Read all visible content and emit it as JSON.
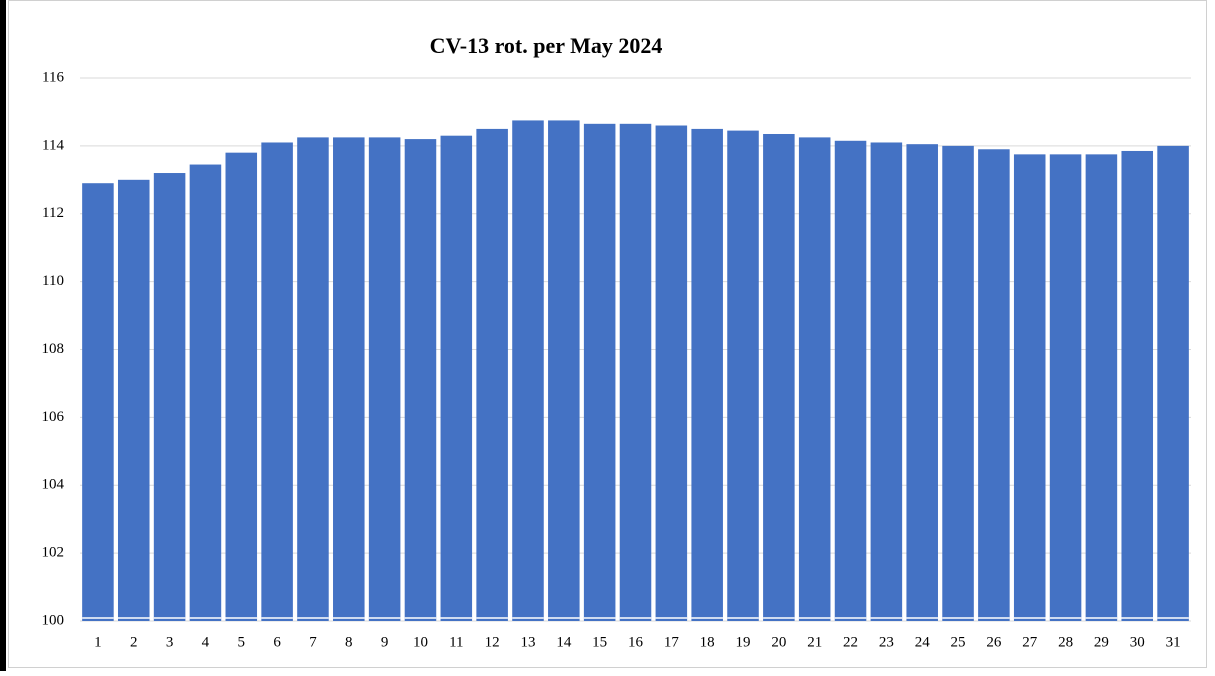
{
  "chart_data": {
    "type": "bar",
    "title": "CV-13 rot. per May 2024",
    "categories": [
      "1",
      "2",
      "3",
      "4",
      "5",
      "6",
      "7",
      "8",
      "9",
      "10",
      "11",
      "12",
      "13",
      "14",
      "15",
      "16",
      "17",
      "18",
      "19",
      "20",
      "21",
      "22",
      "23",
      "24",
      "25",
      "26",
      "27",
      "28",
      "29",
      "30",
      "31"
    ],
    "values": [
      112.9,
      113.0,
      113.2,
      113.45,
      113.8,
      114.1,
      114.25,
      114.25,
      114.25,
      114.2,
      114.3,
      114.5,
      114.75,
      114.75,
      114.65,
      114.65,
      114.6,
      114.5,
      114.45,
      114.35,
      114.25,
      114.15,
      114.1,
      114.05,
      114.0,
      113.9,
      113.75,
      113.75,
      113.75,
      113.85,
      114.0
    ],
    "color": "#4472c4",
    "ylim": [
      100,
      116
    ],
    "yticks": [
      100,
      102,
      104,
      106,
      108,
      110,
      112,
      114,
      116
    ],
    "grid": true
  }
}
